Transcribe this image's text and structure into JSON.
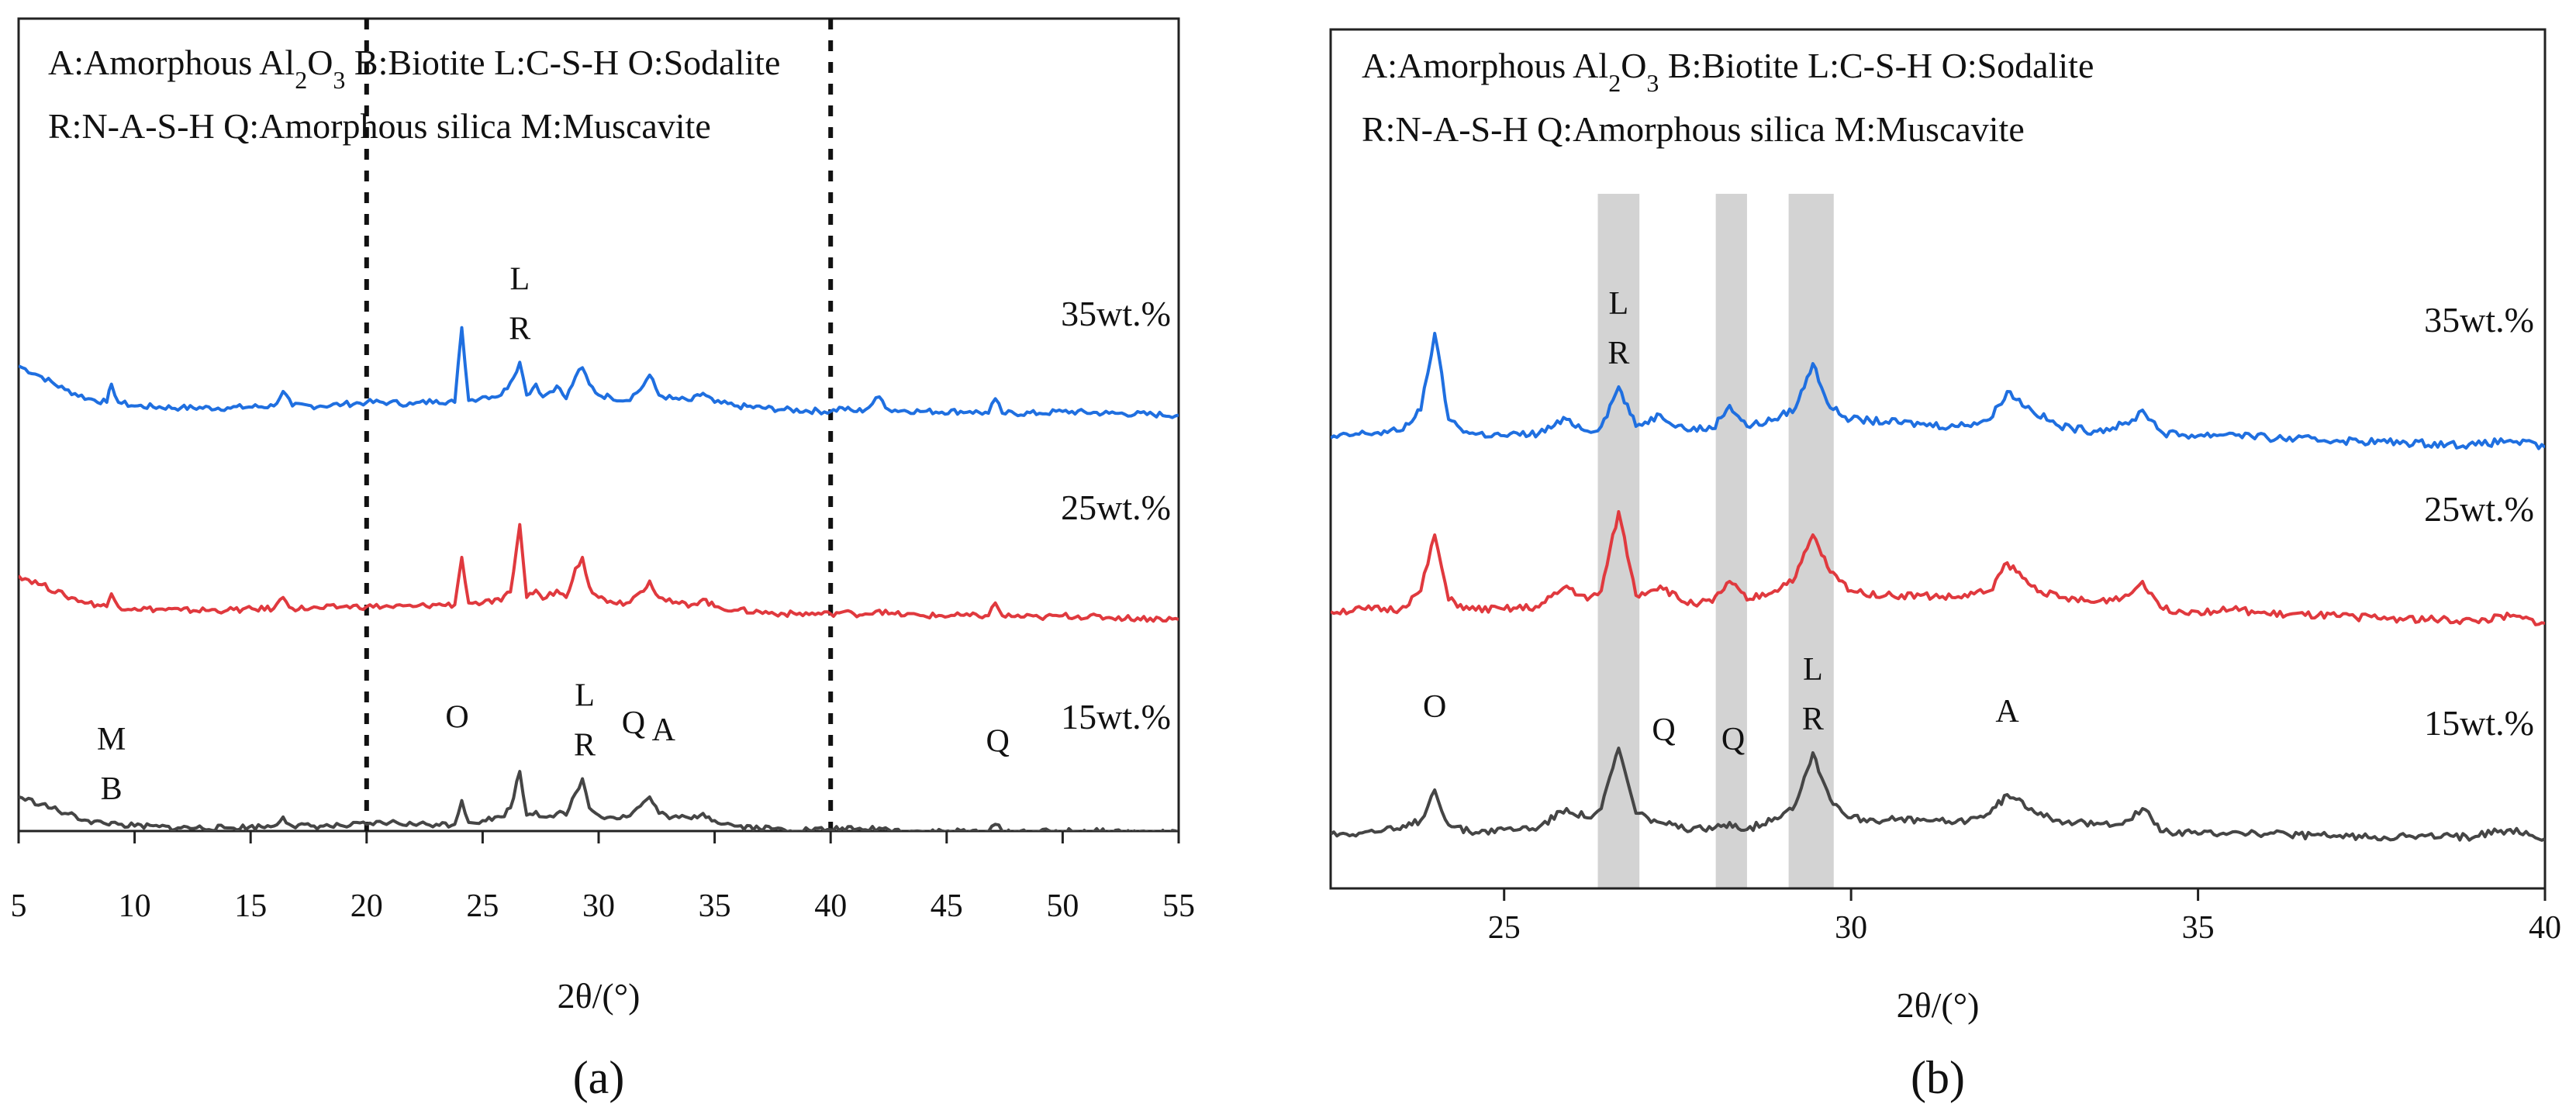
{
  "chart_data": [
    {
      "type": "line",
      "panel_label": "(a)",
      "xlabel": "2θ/(°)",
      "ylabel": "",
      "xlim": [
        5,
        55
      ],
      "xticks": [
        5,
        10,
        15,
        20,
        25,
        30,
        35,
        40,
        45,
        50,
        55
      ],
      "legend_lines": [
        "A:Amorphous Al₂O₃  B:Biotite    L:C-S-H  O:Sodalite",
        "R:N-A-S-H  Q:Amorphous silica  M:Muscavite"
      ],
      "dashed_lines_x": [
        20,
        40
      ],
      "series": [
        {
          "name": "35wt.%",
          "color": "#1f6fe0",
          "x": [
            5,
            6,
            7,
            8,
            8.8,
            9,
            9.3,
            10,
            12,
            14,
            16,
            16.4,
            16.8,
            18,
            19,
            20,
            21,
            22,
            23,
            23.8,
            24.1,
            24.4,
            25,
            25.8,
            26.2,
            26.6,
            26.9,
            27.3,
            27.6,
            28.2,
            28.6,
            29.0,
            29.3,
            29.6,
            30.0,
            30.5,
            31.2,
            31.8,
            32.2,
            32.6,
            33.2,
            34.0,
            34.5,
            35.0,
            36,
            38,
            40,
            40.5,
            41,
            41.5,
            42.1,
            42.5,
            44,
            46,
            46.8,
            47.1,
            47.4,
            49,
            50,
            52,
            55
          ],
          "values": [
            80,
            74,
            67,
            62,
            60,
            70,
            60,
            58,
            57,
            57,
            58,
            66,
            58,
            58,
            59,
            60,
            60,
            59,
            61,
            60,
            101,
            61,
            63,
            64,
            71,
            82,
            64,
            70,
            63,
            69,
            62,
            74,
            79,
            70,
            64,
            63,
            61,
            67,
            75,
            64,
            62,
            61,
            65,
            60,
            58,
            56,
            55,
            57,
            55,
            56,
            63,
            56,
            55,
            55,
            54,
            62,
            54,
            54,
            55,
            54,
            53
          ]
        },
        {
          "name": "25wt.%",
          "color": "#e0393e",
          "x": [
            5,
            6,
            7,
            8,
            8.8,
            9,
            9.3,
            10,
            12,
            14,
            16,
            16.4,
            16.8,
            18,
            19,
            20,
            21,
            22,
            23,
            23.8,
            24.1,
            24.4,
            25,
            25.8,
            26.2,
            26.6,
            26.9,
            27.3,
            27.6,
            28.2,
            28.6,
            29.0,
            29.3,
            29.6,
            30.0,
            30.5,
            31.2,
            31.8,
            32.2,
            32.6,
            33.2,
            34.0,
            34.5,
            35.0,
            36,
            38,
            40,
            40.5,
            41,
            41.5,
            42.1,
            42.5,
            44,
            46,
            46.8,
            47.1,
            47.4,
            49,
            50,
            52,
            55
          ],
          "values": [
            50,
            45,
            39,
            35,
            33,
            40,
            33,
            32,
            31,
            31,
            32,
            38,
            32,
            32,
            33,
            33,
            33,
            33,
            34,
            34,
            60,
            35,
            35,
            36,
            41,
            78,
            38,
            42,
            37,
            42,
            38,
            54,
            60,
            44,
            38,
            36,
            35,
            41,
            47,
            38,
            35,
            34,
            37,
            33,
            31,
            29,
            29,
            30,
            29,
            29,
            31,
            29,
            28,
            28,
            28,
            35,
            28,
            27,
            28,
            27,
            26
          ]
        },
        {
          "name": "15wt.%",
          "color": "#454545",
          "x": [
            5,
            6,
            7,
            8,
            8.8,
            9,
            9.3,
            10,
            12,
            14,
            16,
            16.4,
            16.8,
            18,
            19,
            20,
            21,
            22,
            23,
            23.8,
            24.1,
            24.4,
            25,
            25.8,
            26.2,
            26.6,
            26.9,
            27.3,
            27.6,
            28.2,
            28.6,
            29.0,
            29.3,
            29.6,
            30.0,
            30.5,
            31.2,
            31.8,
            32.2,
            32.6,
            33.2,
            34.0,
            34.5,
            35.0,
            36,
            38,
            40,
            40.5,
            41,
            41.5,
            42.1,
            42.5,
            44,
            46,
            46.8,
            47.1,
            47.4,
            49,
            50,
            52,
            55
          ],
          "values": [
            20,
            16,
            11,
            7,
            5,
            6,
            5,
            4,
            3,
            3,
            4,
            9,
            4,
            4,
            4,
            5,
            6,
            5,
            5,
            5,
            18,
            6,
            7,
            9,
            14,
            34,
            10,
            12,
            9,
            11,
            10,
            22,
            30,
            14,
            10,
            9,
            9,
            15,
            20,
            11,
            9,
            8,
            11,
            7,
            4,
            2,
            2,
            3,
            2,
            2,
            3,
            2,
            1,
            1,
            1,
            5,
            1,
            1,
            1,
            1,
            0
          ]
        }
      ],
      "peak_annotations": [
        {
          "text": "L",
          "x": 26.6,
          "series": "35wt.%",
          "line": 0
        },
        {
          "text": "R",
          "x": 26.6,
          "series": "35wt.%",
          "line": 1
        },
        {
          "text": "M",
          "x": 9.0,
          "series": "15wt.%",
          "line": 0
        },
        {
          "text": "B",
          "x": 9.0,
          "series": "15wt.%",
          "line": 1
        },
        {
          "text": "O",
          "x": 23.9,
          "series": "15wt.%",
          "line": 0
        },
        {
          "text": "L",
          "x": 29.4,
          "series": "15wt.%",
          "line": 0
        },
        {
          "text": "R",
          "x": 29.4,
          "series": "15wt.%",
          "line": 1
        },
        {
          "text": "Q",
          "x": 31.5,
          "series": "15wt.%",
          "line": 0
        },
        {
          "text": "A",
          "x": 32.8,
          "series": "15wt.%",
          "line": 0
        },
        {
          "text": "Q",
          "x": 47.2,
          "series": "15wt.%",
          "line": 0
        }
      ]
    },
    {
      "type": "line",
      "panel_label": "(b)",
      "xlabel": "2θ/(°)",
      "ylabel": "",
      "xlim": [
        22.5,
        40
      ],
      "xticks": [
        25,
        30,
        35,
        40
      ],
      "legend_lines": [
        "A:Amorphous Al₂O₃  B:Biotite    L:C-S-H  O:Sodalite",
        "R:N-A-S-H  Q:Amorphous silica  M:Muscavite"
      ],
      "shaded_bands_x": [
        [
          26.35,
          26.95
        ],
        [
          28.05,
          28.5
        ],
        [
          29.1,
          29.75
        ]
      ],
      "series": [
        {
          "name": "35wt.%",
          "color": "#1f6fe0",
          "x": [
            22.5,
            23.0,
            23.5,
            23.8,
            24.0,
            24.2,
            24.5,
            25.0,
            25.5,
            25.9,
            26.2,
            26.4,
            26.65,
            26.9,
            27.25,
            27.6,
            28.0,
            28.25,
            28.5,
            28.9,
            29.2,
            29.45,
            29.7,
            30.0,
            30.5,
            31.0,
            31.5,
            32.0,
            32.25,
            32.6,
            33.0,
            33.5,
            34.0,
            34.2,
            34.5,
            35.0,
            35.5,
            36.0,
            37.0,
            38.0,
            39.0,
            39.5,
            40.0
          ],
          "values": [
            50,
            52,
            53,
            62,
            95,
            58,
            52,
            51,
            52,
            58,
            53,
            55,
            72,
            55,
            60,
            54,
            54,
            64,
            55,
            58,
            63,
            82,
            63,
            58,
            57,
            56,
            55,
            58,
            70,
            62,
            55,
            53,
            56,
            62,
            52,
            51,
            52,
            50,
            49,
            48,
            47,
            49,
            46
          ]
        },
        {
          "name": "25wt.%",
          "color": "#e0393e",
          "x": [
            22.5,
            23.0,
            23.5,
            23.8,
            24.0,
            24.2,
            24.5,
            25.0,
            25.5,
            25.9,
            26.2,
            26.4,
            26.65,
            26.9,
            27.25,
            27.6,
            28.0,
            28.25,
            28.5,
            28.9,
            29.2,
            29.45,
            29.7,
            30.0,
            30.5,
            31.0,
            31.5,
            32.0,
            32.25,
            32.6,
            33.0,
            33.5,
            34.0,
            34.2,
            34.5,
            35.0,
            35.5,
            36.0,
            37.0,
            38.0,
            39.0,
            39.5,
            40.0
          ],
          "values": [
            27,
            28,
            28,
            36,
            60,
            32,
            28,
            28,
            29,
            38,
            32,
            36,
            70,
            34,
            38,
            31,
            31,
            40,
            32,
            36,
            42,
            60,
            44,
            36,
            34,
            34,
            33,
            36,
            48,
            38,
            33,
            31,
            34,
            40,
            28,
            27,
            28,
            26,
            25,
            24,
            23,
            25,
            22
          ]
        },
        {
          "name": "15wt.%",
          "color": "#454545",
          "x": [
            22.5,
            23.0,
            23.5,
            23.8,
            24.0,
            24.2,
            24.5,
            25.0,
            25.5,
            25.9,
            26.2,
            26.4,
            26.65,
            26.9,
            27.25,
            27.6,
            28.0,
            28.25,
            28.5,
            28.9,
            29.2,
            29.45,
            29.7,
            30.0,
            30.5,
            31.0,
            31.5,
            32.0,
            32.25,
            32.6,
            33.0,
            33.5,
            34.0,
            34.2,
            34.5,
            35.0,
            35.5,
            36.0,
            37.0,
            38.0,
            39.0,
            39.5,
            40.0
          ],
          "values": [
            3,
            4,
            5,
            9,
            22,
            7,
            4,
            5,
            6,
            14,
            10,
            14,
            40,
            12,
            8,
            5,
            5,
            8,
            5,
            10,
            16,
            38,
            18,
            10,
            9,
            9,
            8,
            12,
            20,
            14,
            9,
            7,
            9,
            14,
            4,
            3,
            4,
            3,
            2,
            2,
            2,
            5,
            1
          ]
        }
      ],
      "peak_annotations": [
        {
          "text": "L",
          "x": 26.65,
          "series": "35wt.%",
          "line": 0
        },
        {
          "text": "R",
          "x": 26.65,
          "series": "35wt.%",
          "line": 1
        },
        {
          "text": "O",
          "x": 24.0,
          "series": "15wt.%",
          "line": 0
        },
        {
          "text": "Q",
          "x": 27.3,
          "series": "15wt.%",
          "line": 0
        },
        {
          "text": "Q",
          "x": 28.3,
          "series": "15wt.%",
          "line": 0
        },
        {
          "text": "L",
          "x": 29.45,
          "series": "15wt.%",
          "line": 0
        },
        {
          "text": "R",
          "x": 29.45,
          "series": "15wt.%",
          "line": 1
        },
        {
          "text": "A",
          "x": 32.25,
          "series": "15wt.%",
          "line": 0
        }
      ]
    }
  ]
}
